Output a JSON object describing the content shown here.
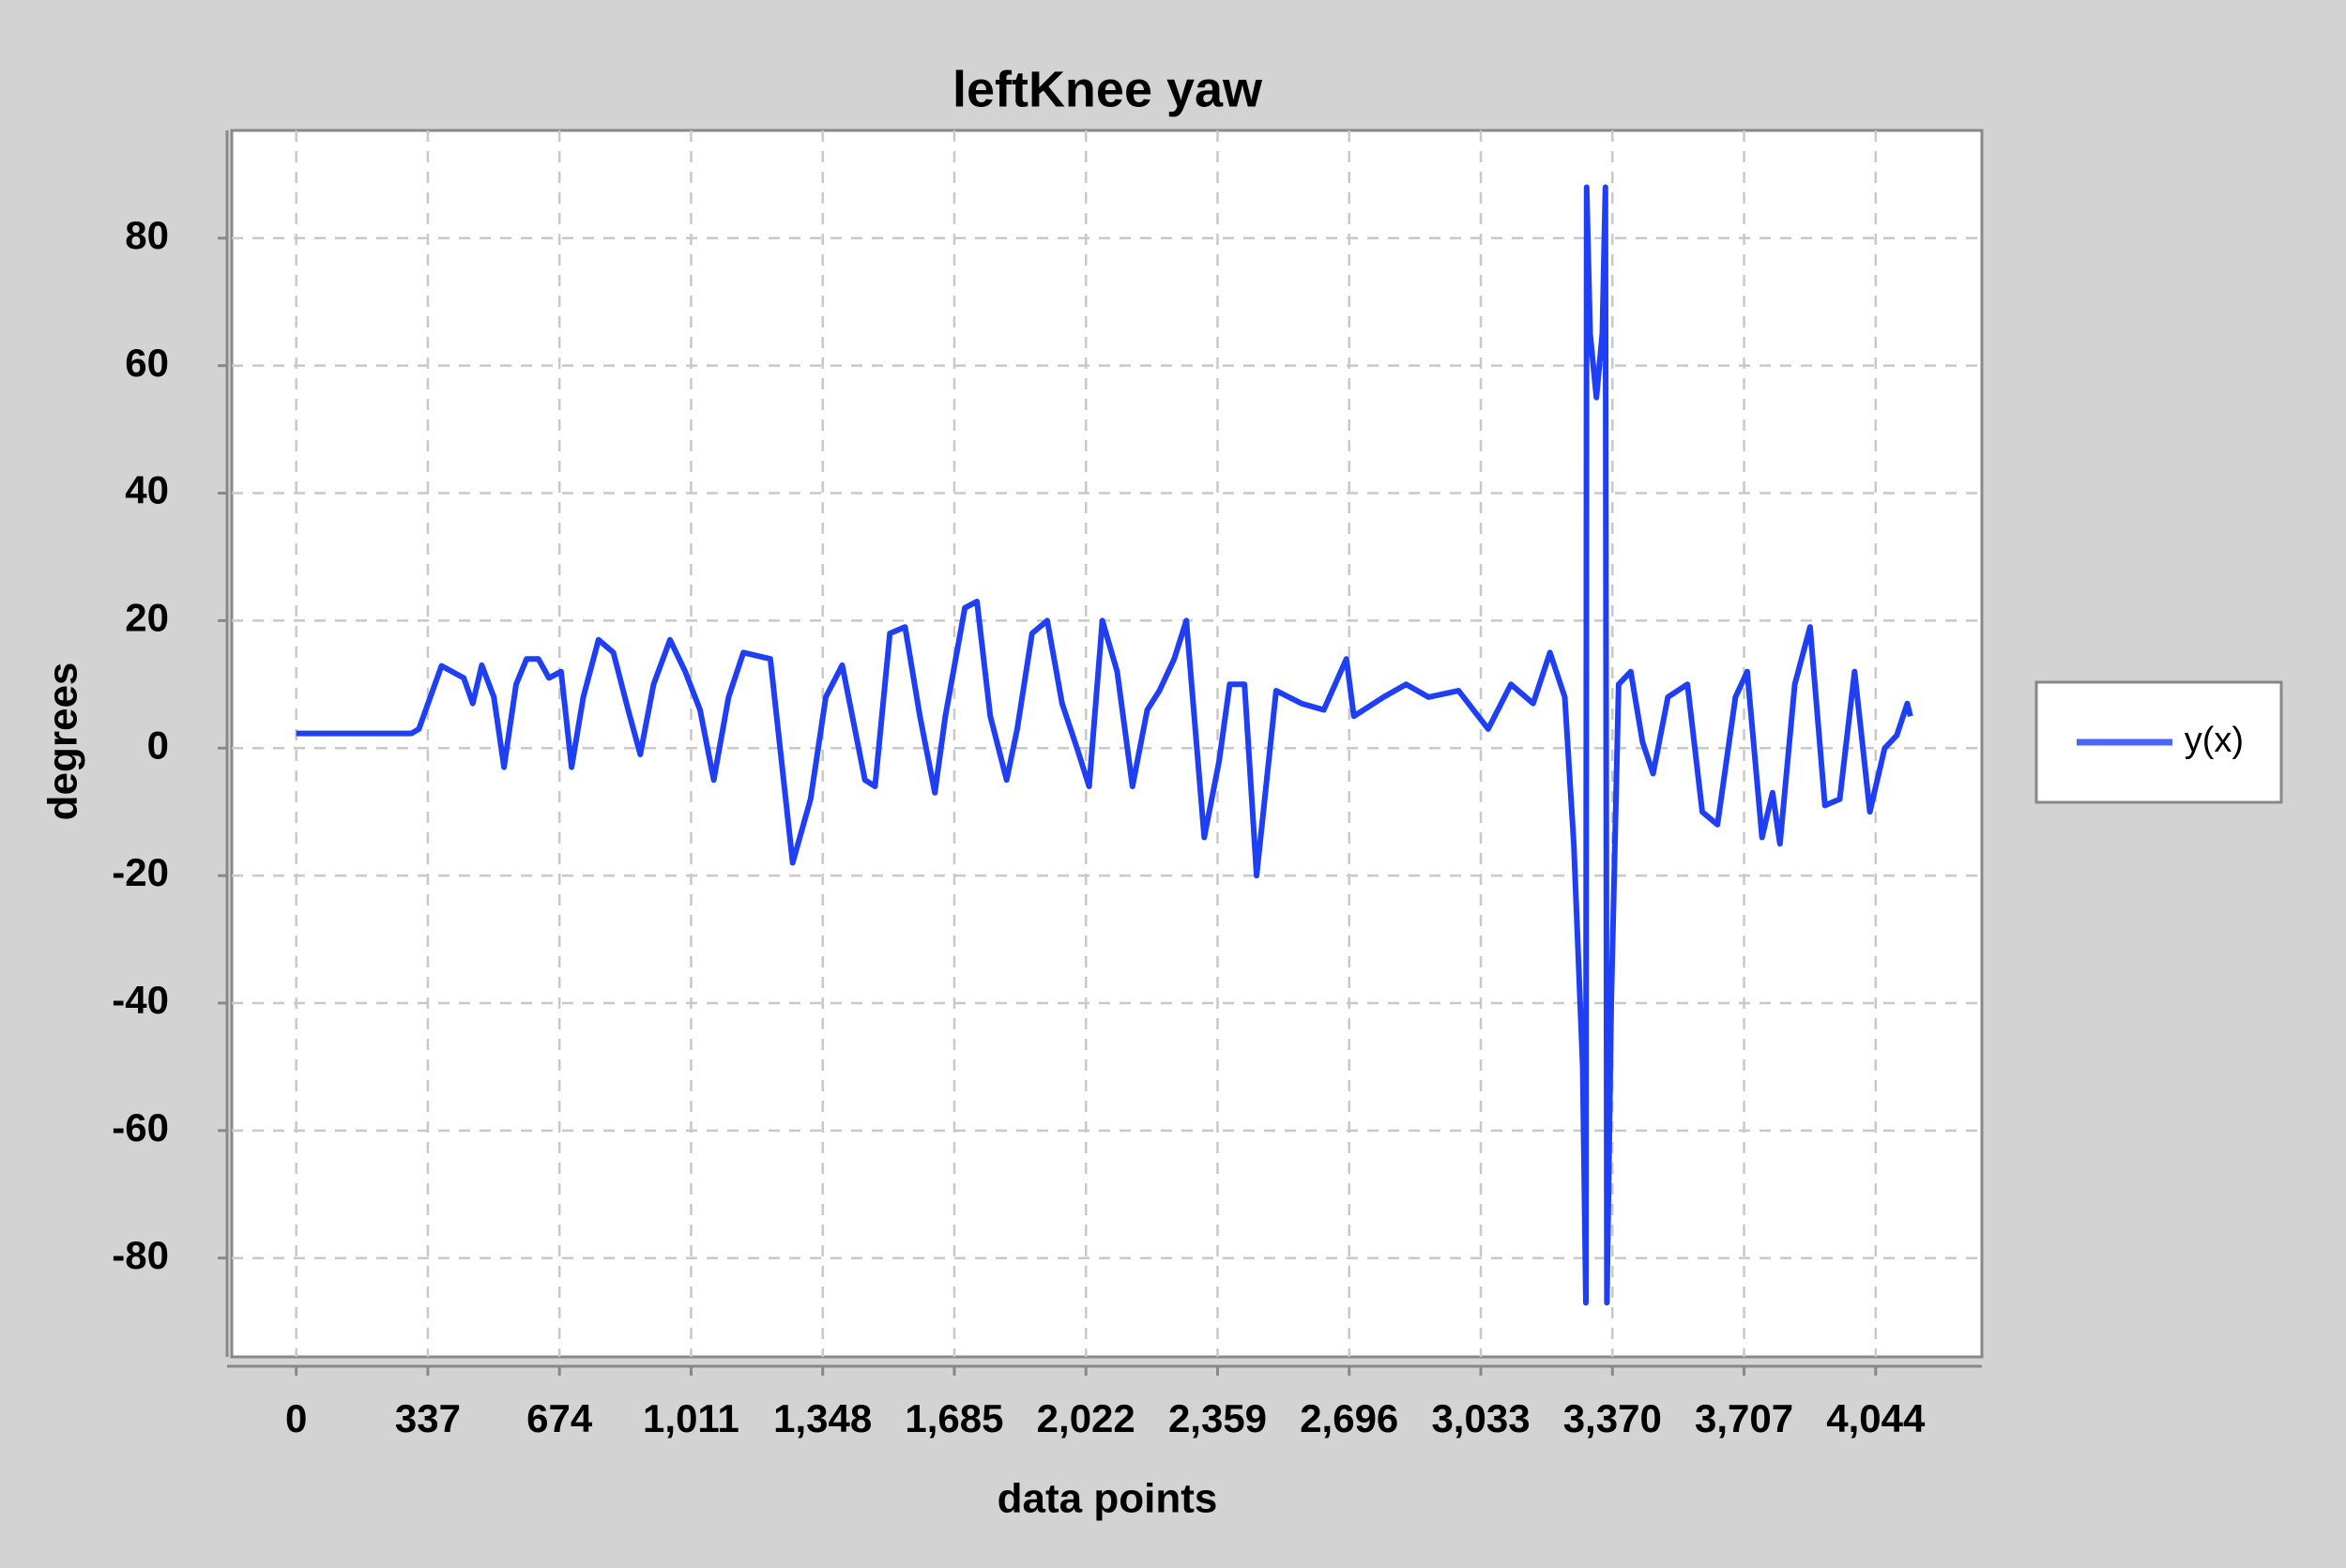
{
  "chart_data": {
    "type": "line",
    "title": "leftKnee yaw",
    "xlabel": "data points",
    "ylabel": "degrees",
    "x": [
      0,
      295,
      314,
      372,
      429,
      452,
      475,
      506,
      532,
      563,
      590,
      620,
      647,
      678,
      705,
      735,
      774,
      812,
      850,
      881,
      915,
      957,
      996,
      1034,
      1069,
      1107,
      1145,
      1214,
      1271,
      1317,
      1356,
      1398,
      1456,
      1482,
      1520,
      1559,
      1597,
      1635,
      1662,
      1712,
      1743,
      1777,
      1819,
      1846,
      1884,
      1923,
      1961,
      1999,
      2030,
      2064,
      2102,
      2141,
      2179,
      2210,
      2248,
      2279,
      2325,
      2363,
      2390,
      2428,
      2459,
      2509,
      2574,
      2631,
      2689,
      2708,
      2784,
      2842,
      2899,
      2976,
      3052,
      3110,
      3167,
      3210,
      3248,
      3271,
      3294,
      3302,
      3304,
      3313,
      3329,
      3344,
      3352,
      3356,
      3367,
      3386,
      3417,
      3447,
      3474,
      3512,
      3562,
      3600,
      3639,
      3685,
      3715,
      3753,
      3780,
      3799,
      3837,
      3876,
      3914,
      3952,
      3990,
      4029,
      4067,
      4098,
      4125,
      4133
    ],
    "series": [
      {
        "name": "y(x)",
        "color": "#1f3ff5",
        "values": [
          2.3,
          2.3,
          3,
          12.9,
          11,
          7,
          13,
          8,
          -3,
          10,
          14,
          14,
          11,
          12,
          -3,
          8,
          17,
          15,
          6,
          -1,
          10,
          17,
          12,
          6,
          -5,
          8,
          15,
          14,
          -18,
          -8,
          8,
          13,
          -5,
          -6,
          18,
          19,
          5,
          -7,
          5,
          22,
          23,
          5,
          -5,
          3,
          18,
          20,
          7,
          0,
          -6,
          20,
          12,
          -6,
          6,
          9,
          14,
          20,
          -14,
          -2,
          10,
          10,
          -20,
          9,
          7,
          6,
          14,
          5,
          8,
          10,
          8,
          9,
          3,
          10,
          7,
          15,
          8,
          -15,
          -50,
          -87,
          88,
          65,
          55,
          65,
          88,
          -87,
          -40,
          10,
          12,
          1,
          -4,
          8,
          10,
          -10,
          -12,
          8,
          12,
          -14,
          -7,
          -15,
          10,
          19,
          -9,
          -8,
          12,
          -10,
          0,
          2,
          7,
          5
        ]
      }
    ],
    "xlim": [
      -165,
      4316
    ],
    "ylim": [
      -95.5,
      96.9
    ],
    "xticks": [
      0,
      337,
      674,
      {
        "value": 1011,
        "label": "1,011"
      },
      {
        "value": 1348,
        "label": "1,348"
      },
      {
        "value": 1685,
        "label": "1,685"
      },
      {
        "value": 2022,
        "label": "2,022"
      },
      {
        "value": 2359,
        "label": "2,359"
      },
      {
        "value": 2696,
        "label": "2,696"
      },
      {
        "value": 3033,
        "label": "3,033"
      },
      {
        "value": 3370,
        "label": "3,370"
      },
      {
        "value": 3707,
        "label": "3,707"
      },
      {
        "value": 4044,
        "label": "4,044"
      }
    ],
    "yticks": [
      -80,
      -60,
      -40,
      -20,
      0,
      20,
      40,
      60,
      80
    ],
    "grid": true,
    "legend": "right"
  }
}
